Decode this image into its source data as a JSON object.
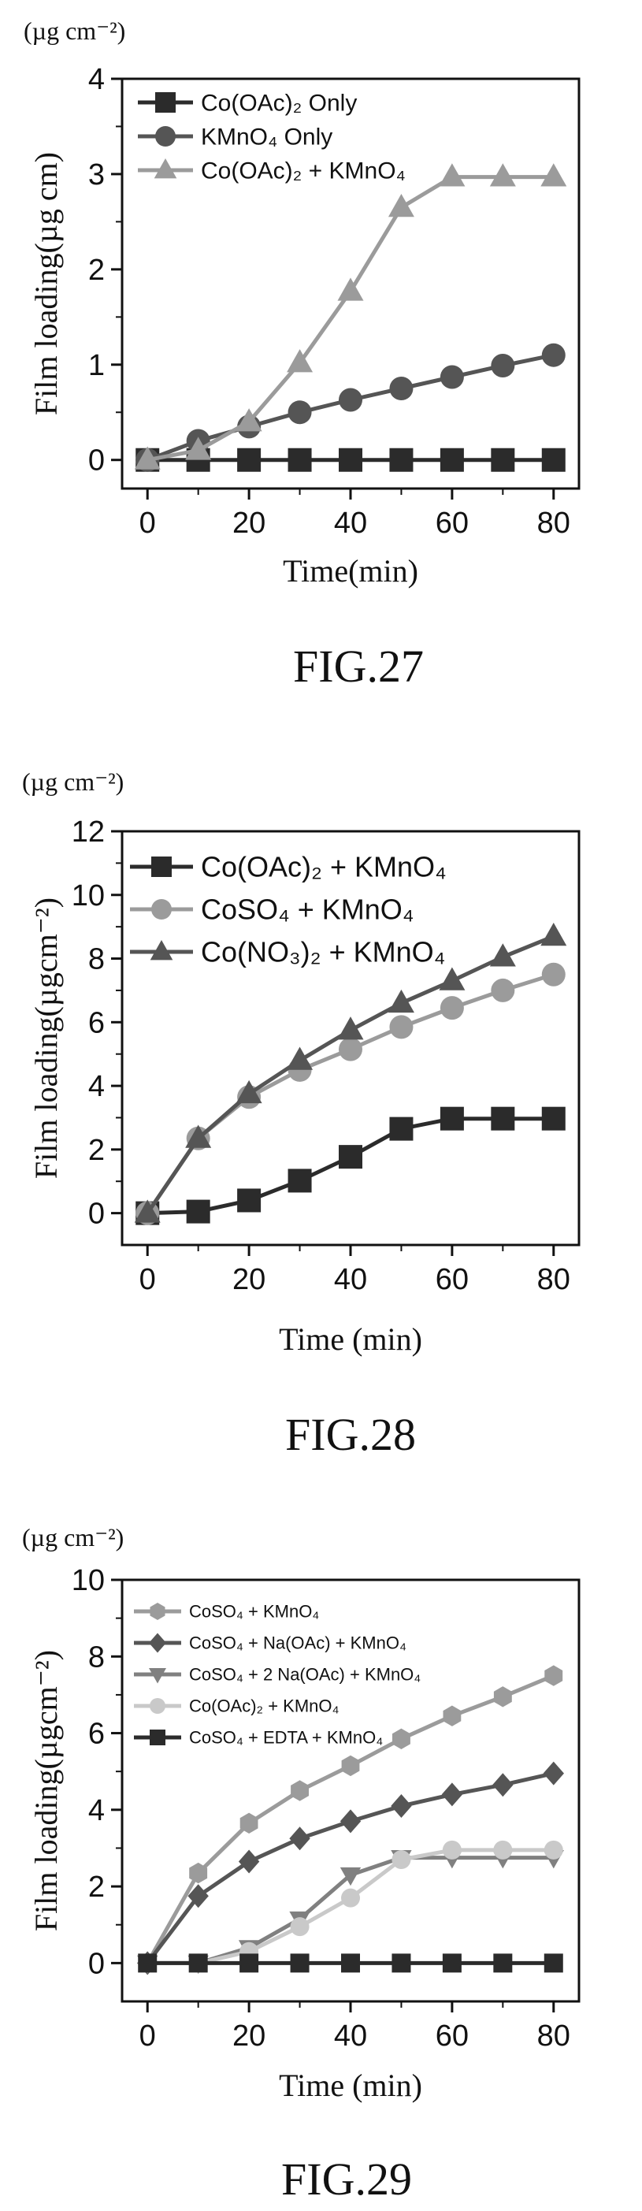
{
  "colors": {
    "black": "#2b2b2b",
    "dark_gray": "#555555",
    "gray": "#808080",
    "light_gray": "#9b9b9b",
    "pale_gray": "#c9c9c9"
  },
  "chart_data": [
    {
      "type": "line",
      "figure_label": "FIG.27",
      "unit_label": "(µg cm⁻²)",
      "xlabel": "Time(min)",
      "ylabel": "Film loading(µg cm)",
      "xlim": [
        -5,
        85
      ],
      "ylim": [
        -0.3,
        4
      ],
      "xticks": [
        0,
        20,
        40,
        60,
        80
      ],
      "yticks": [
        0,
        1,
        2,
        3,
        4
      ],
      "x": [
        0,
        10,
        20,
        30,
        40,
        50,
        60,
        70,
        80
      ],
      "series": [
        {
          "name": "Co(OAc)₂ Only",
          "marker": "square",
          "color": "#2b2b2b",
          "values": [
            0,
            0,
            0,
            0,
            0,
            0,
            0,
            0,
            0
          ]
        },
        {
          "name": "KMnO₄ Only",
          "marker": "circle",
          "color": "#555555",
          "values": [
            0,
            0.2,
            0.35,
            0.5,
            0.63,
            0.75,
            0.87,
            0.99,
            1.1
          ]
        },
        {
          "name": "Co(OAc)₂ + KMnO₄",
          "marker": "triangle",
          "color": "#9b9b9b",
          "values": [
            0,
            0.1,
            0.4,
            1.02,
            1.77,
            2.65,
            2.97,
            2.97,
            2.97
          ]
        }
      ]
    },
    {
      "type": "line",
      "figure_label": "FIG.28",
      "unit_label": "(µg cm⁻²)",
      "xlabel": "Time (min)",
      "ylabel": "Film loading(µgcm⁻²)",
      "xlim": [
        -5,
        85
      ],
      "ylim": [
        -1,
        12
      ],
      "xticks": [
        0,
        20,
        40,
        60,
        80
      ],
      "yticks": [
        0,
        2,
        4,
        6,
        8,
        10,
        12
      ],
      "x": [
        0,
        10,
        20,
        30,
        40,
        50,
        60,
        70,
        80
      ],
      "series": [
        {
          "name": "Co(OAc)₂ + KMnO₄",
          "marker": "square",
          "color": "#2b2b2b",
          "values": [
            0,
            0.05,
            0.4,
            1.02,
            1.77,
            2.65,
            2.97,
            2.97,
            2.97
          ]
        },
        {
          "name": "CoSO₄ + KMnO₄",
          "marker": "circle",
          "color": "#9b9b9b",
          "values": [
            0,
            2.35,
            3.65,
            4.5,
            5.15,
            5.85,
            6.45,
            7.0,
            7.5
          ]
        },
        {
          "name": "Co(NO₃)₂ + KMnO₄",
          "marker": "triangle",
          "color": "#555555",
          "values": [
            0,
            2.35,
            3.75,
            4.8,
            5.75,
            6.6,
            7.3,
            8.05,
            8.7
          ]
        }
      ]
    },
    {
      "type": "line",
      "figure_label": "FIG.29",
      "unit_label": "(µg cm⁻²)",
      "xlabel": "Time (min)",
      "ylabel": "Film loading(µgcm⁻²)",
      "xlim": [
        -5,
        85
      ],
      "ylim": [
        -1,
        10
      ],
      "xticks": [
        0,
        20,
        40,
        60,
        80
      ],
      "yticks": [
        0,
        2,
        4,
        6,
        8,
        10
      ],
      "x": [
        0,
        10,
        20,
        30,
        40,
        50,
        60,
        70,
        80
      ],
      "series": [
        {
          "name": "CoSO₄ + KMnO₄",
          "marker": "hexagon",
          "color": "#9b9b9b",
          "values": [
            0,
            2.35,
            3.65,
            4.5,
            5.15,
            5.85,
            6.45,
            6.95,
            7.5
          ]
        },
        {
          "name": "CoSO₄ + Na(OAc) + KMnO₄",
          "marker": "diamond",
          "color": "#555555",
          "values": [
            0,
            1.75,
            2.65,
            3.25,
            3.7,
            4.1,
            4.4,
            4.65,
            4.95
          ]
        },
        {
          "name": "CoSO₄ + 2 Na(OAc) + KMnO₄",
          "marker": "triangle-down",
          "color": "#808080",
          "values": [
            0,
            0,
            0.4,
            1.15,
            2.3,
            2.75,
            2.75,
            2.75,
            2.75
          ]
        },
        {
          "name": "Co(OAc)₂ + KMnO₄",
          "marker": "circle",
          "color": "#c9c9c9",
          "values": [
            0,
            0,
            0.3,
            0.95,
            1.7,
            2.7,
            2.95,
            2.95,
            2.95
          ]
        },
        {
          "name": "CoSO₄ + EDTA + KMnO₄",
          "marker": "square",
          "color": "#2b2b2b",
          "values": [
            0,
            0,
            0,
            0,
            0,
            0,
            0,
            0,
            0
          ]
        }
      ]
    }
  ]
}
